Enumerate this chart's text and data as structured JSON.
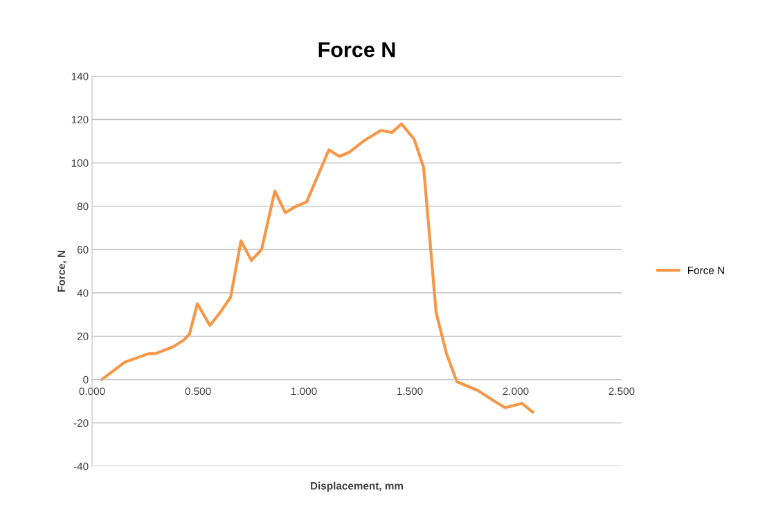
{
  "chart_data": {
    "type": "line",
    "title": "Force N",
    "xlabel": "Displacement, mm",
    "ylabel": "Force, N",
    "x": [
      0.046,
      0.154,
      0.268,
      0.3,
      0.38,
      0.43,
      0.46,
      0.497,
      0.556,
      0.605,
      0.654,
      0.703,
      0.752,
      0.8,
      0.863,
      0.912,
      0.964,
      1.013,
      1.118,
      1.167,
      1.216,
      1.281,
      1.363,
      1.415,
      1.461,
      1.52,
      1.565,
      1.59,
      1.624,
      1.673,
      1.722,
      1.82,
      1.9,
      1.95,
      2.03,
      2.08
    ],
    "series": [
      {
        "name": "Force N",
        "color": "#f79646",
        "values": [
          0,
          8,
          12,
          12,
          15,
          18,
          21,
          35,
          25,
          31,
          38,
          64,
          55,
          60,
          87,
          77,
          80,
          82,
          106,
          103,
          105,
          110,
          115,
          114,
          118,
          111,
          98,
          70,
          31,
          12,
          -1,
          -5,
          -10,
          -13,
          -11,
          -15
        ]
      }
    ],
    "xlim": [
      0,
      2.5
    ],
    "ylim": [
      -40,
      140
    ],
    "xticks": [
      {
        "value": 0,
        "label": "0.000"
      },
      {
        "value": 0.5,
        "label": "0.500"
      },
      {
        "value": 1,
        "label": "1.000"
      },
      {
        "value": 1.5,
        "label": "1.500"
      },
      {
        "value": 2,
        "label": "2.000"
      },
      {
        "value": 2.5,
        "label": "2.500"
      }
    ],
    "yticks": [
      -40,
      -20,
      0,
      20,
      40,
      60,
      80,
      100,
      120,
      140
    ],
    "grid": "y",
    "legend": "right",
    "marker": "none",
    "line_style": "solid"
  }
}
